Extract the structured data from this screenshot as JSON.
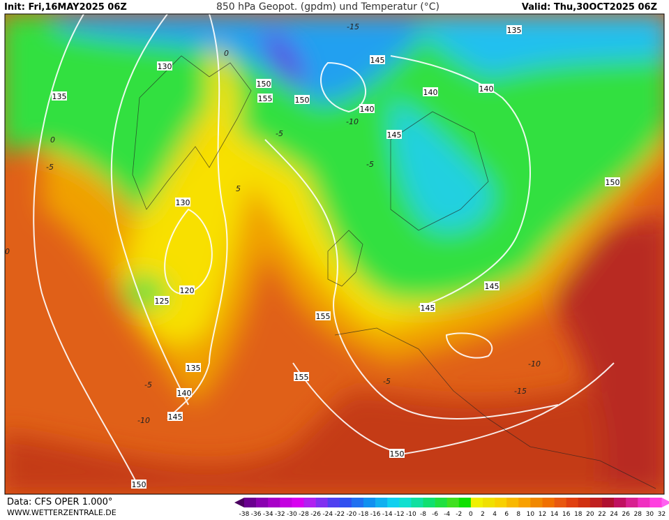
{
  "header": {
    "init": "Init: Fri,16MAY2025 06Z",
    "title": "850 hPa Geopot. (gpdm) und Temperatur (°C)",
    "valid": "Valid: Thu,30OCT2025 06Z"
  },
  "footer": {
    "source": "Data: CFS OPER 1.000°",
    "website": "WWW.WETTERZENTRALE.DE"
  },
  "geopotential_labels": [
    130,
    135,
    150,
    155,
    150,
    145,
    140,
    140,
    140,
    135,
    145,
    150,
    130,
    120,
    125,
    155,
    145,
    145,
    135,
    140,
    145,
    155,
    150,
    150
  ],
  "temperature_labels": [
    -15,
    -10,
    -5,
    0,
    -5,
    -10,
    -15,
    -10,
    -5,
    -5,
    0,
    -5,
    5,
    0
  ],
  "colorbar": {
    "labels": [
      -38,
      -36,
      -34,
      -32,
      -30,
      -28,
      -26,
      -24,
      -22,
      -20,
      -18,
      -16,
      -14,
      -12,
      -10,
      -8,
      -6,
      -4,
      -2,
      0,
      2,
      4,
      6,
      8,
      10,
      12,
      14,
      16,
      18,
      20,
      22,
      24,
      26,
      28,
      30,
      32
    ],
    "colors": [
      "#4b0060",
      "#6a0090",
      "#8a00b0",
      "#a800c8",
      "#c400e0",
      "#d800f0",
      "#b020f0",
      "#8030f0",
      "#5040f0",
      "#3050f0",
      "#2070f0",
      "#1090f0",
      "#10b0f0",
      "#10d0f0",
      "#10e0d0",
      "#10e0a0",
      "#10e070",
      "#20e040",
      "#40e020",
      "#10e000",
      "#f0f000",
      "#f0e000",
      "#f8d000",
      "#f8b800",
      "#f8a000",
      "#f08800",
      "#f07000",
      "#e85810",
      "#e04010",
      "#d03010",
      "#c02020",
      "#b01030",
      "#c01060",
      "#d82090",
      "#f030c0",
      "#ff40e0",
      "#ff60f0"
    ]
  }
}
